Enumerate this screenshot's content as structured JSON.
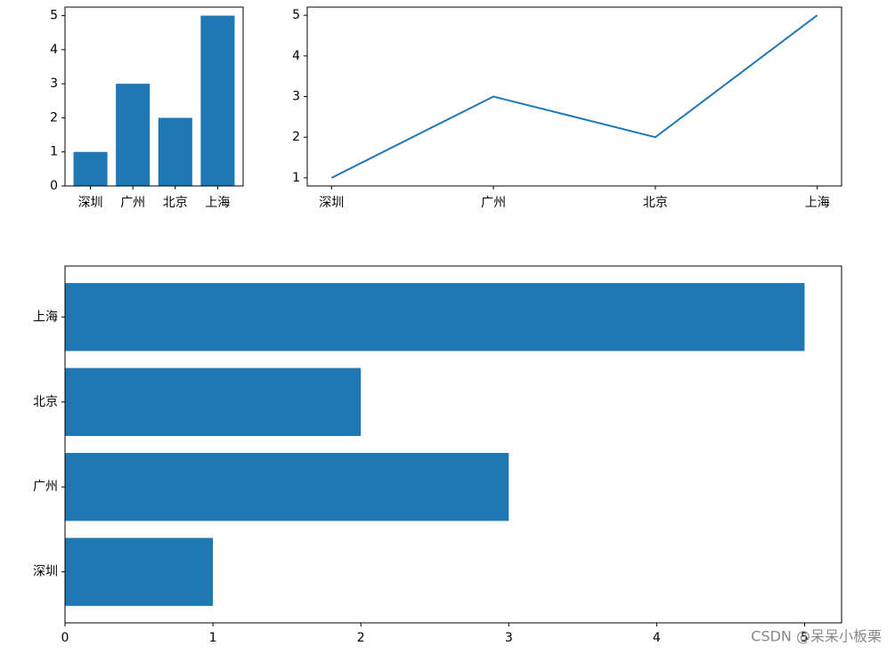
{
  "chart_data": [
    {
      "type": "bar",
      "categories": [
        "深圳",
        "广州",
        "北京",
        "上海"
      ],
      "values": [
        1,
        3,
        2,
        5
      ],
      "color": "#1f77b4",
      "ylim": [
        0,
        5.25
      ],
      "yticks": [
        0,
        1,
        2,
        3,
        4,
        5
      ]
    },
    {
      "type": "line",
      "categories": [
        "深圳",
        "广州",
        "北京",
        "上海"
      ],
      "values": [
        1,
        3,
        2,
        5
      ],
      "color": "#1f77b4",
      "ylim": [
        0.8,
        5.2
      ],
      "yticks": [
        1,
        2,
        3,
        4,
        5
      ]
    },
    {
      "type": "barh",
      "categories": [
        "深圳",
        "广州",
        "北京",
        "上海"
      ],
      "values": [
        1,
        3,
        2,
        5
      ],
      "color": "#1f77b4",
      "xlim": [
        0,
        5.25
      ],
      "xticks": [
        0,
        1,
        2,
        3,
        4,
        5
      ]
    }
  ],
  "watermark": "CSDN @呆呆小板栗"
}
